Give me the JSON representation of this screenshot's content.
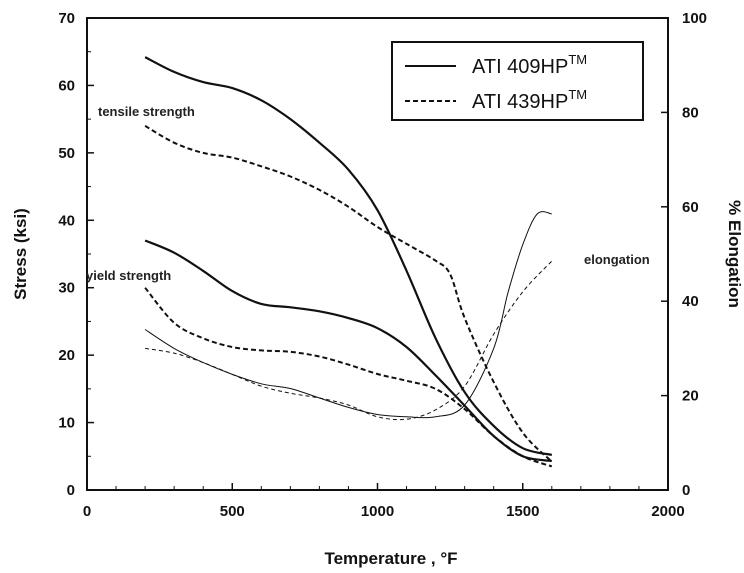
{
  "chart_data": {
    "type": "line",
    "xlabel": "Temperature , °F",
    "ylabel": "Stress  (ksi)",
    "y2label": "% Elongation",
    "xlim": [
      0,
      2000
    ],
    "ylim": [
      0,
      70
    ],
    "y2lim": [
      0,
      100
    ],
    "xticks": [
      "0",
      "500",
      "1000",
      "1500",
      "2000"
    ],
    "yticks": [
      "0",
      "10",
      "20",
      "30",
      "40",
      "50",
      "60",
      "70"
    ],
    "y2ticks": [
      "0",
      "20",
      "40",
      "60",
      "80",
      "100"
    ],
    "grid": false,
    "legend_position": "top-right",
    "legend": [
      {
        "label": "ATI 409HP",
        "superscript": "TM",
        "style": "solid"
      },
      {
        "label": "ATI 439HP",
        "superscript": "TM",
        "style": "dashed"
      }
    ],
    "annotations": {
      "tensile": "tensile strength",
      "yield": "yield strength",
      "elongation": "elongation"
    },
    "series": [
      {
        "group": "tensile",
        "alloy": "ATI 409HP",
        "style": "solid",
        "axis": "left",
        "width": 2.2,
        "x": [
          200,
          300,
          400,
          500,
          600,
          700,
          800,
          900,
          1000,
          1100,
          1200,
          1300,
          1400,
          1500,
          1600
        ],
        "y": [
          64.2,
          62.0,
          60.5,
          59.6,
          57.8,
          55.0,
          51.5,
          47.5,
          41.5,
          32.5,
          22.5,
          14.5,
          9.5,
          6.2,
          5.2
        ]
      },
      {
        "group": "tensile",
        "alloy": "ATI 439HP",
        "style": "dashed",
        "axis": "left",
        "width": 2.0,
        "x": [
          200,
          300,
          400,
          500,
          600,
          700,
          800,
          900,
          1000,
          1100,
          1200,
          1250,
          1300,
          1400,
          1500,
          1600
        ],
        "y": [
          54.0,
          51.5,
          50.0,
          49.3,
          48.0,
          46.5,
          44.5,
          42.0,
          39.0,
          36.5,
          34.0,
          32.0,
          25.5,
          16.0,
          8.5,
          4.2
        ]
      },
      {
        "group": "yield",
        "alloy": "ATI 409HP",
        "style": "solid",
        "axis": "left",
        "width": 2.2,
        "x": [
          200,
          300,
          400,
          500,
          600,
          700,
          800,
          900,
          1000,
          1100,
          1200,
          1300,
          1400,
          1500,
          1600
        ],
        "y": [
          37.0,
          35.2,
          32.5,
          29.5,
          27.6,
          27.1,
          26.5,
          25.5,
          24.0,
          21.2,
          17.0,
          12.5,
          8.0,
          5.0,
          4.3
        ]
      },
      {
        "group": "yield",
        "alloy": "ATI 439HP",
        "style": "dashed",
        "axis": "left",
        "width": 2.0,
        "x": [
          200,
          300,
          400,
          500,
          600,
          700,
          800,
          900,
          1000,
          1100,
          1200,
          1300,
          1400,
          1500,
          1600
        ],
        "y": [
          30.0,
          24.8,
          22.5,
          21.2,
          20.7,
          20.5,
          19.8,
          18.6,
          17.2,
          16.2,
          15.0,
          12.0,
          8.0,
          5.0,
          3.5
        ]
      },
      {
        "group": "elongation",
        "alloy": "ATI 409HP",
        "style": "solid",
        "axis": "right",
        "width": 1.0,
        "x": [
          200,
          300,
          400,
          500,
          600,
          700,
          800,
          900,
          1000,
          1100,
          1200,
          1300,
          1400,
          1450,
          1500,
          1550,
          1600
        ],
        "y": [
          34.0,
          30.0,
          27.0,
          24.5,
          22.5,
          21.5,
          19.5,
          17.5,
          16.0,
          15.5,
          15.5,
          18.0,
          30.0,
          42.0,
          52.0,
          58.5,
          58.5
        ]
      },
      {
        "group": "elongation",
        "alloy": "ATI 439HP",
        "style": "dashed",
        "axis": "right",
        "width": 1.0,
        "x": [
          200,
          300,
          400,
          500,
          600,
          700,
          800,
          900,
          1000,
          1100,
          1200,
          1300,
          1400,
          1500,
          1600
        ],
        "y": [
          30.0,
          29.0,
          27.0,
          24.5,
          22.0,
          20.5,
          19.5,
          18.0,
          15.5,
          15.0,
          17.0,
          22.0,
          33.0,
          42.0,
          48.5
        ]
      }
    ]
  }
}
